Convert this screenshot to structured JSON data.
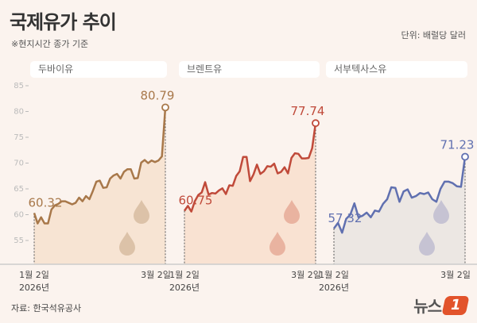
{
  "header": {
    "title": "국제유가 추이",
    "subtitle": "※현지시간 종가 기준",
    "unit": "단위: 배럴당 달러"
  },
  "footer": {
    "source": "자료: 한국석유공사",
    "logo": "뉴스1"
  },
  "chart_data": [
    {
      "type": "area",
      "title": "두바이유",
      "color": "#a8784a",
      "fill": "#f7e4d3",
      "drop_color": "#dcc2a8",
      "x_ticks": [
        "1월 2일\n2026년",
        "3월 2일"
      ],
      "x_start": "1월 2일 2026년",
      "x_end": "3월 2일",
      "ylim": [
        50.4,
        87
      ],
      "y_ticks": [
        55,
        60,
        65,
        70,
        75,
        80,
        85
      ],
      "start_label": "60.32",
      "end_label": "80.79",
      "values": [
        60.32,
        58.3,
        59.5,
        58.3,
        58.3,
        61,
        61.8,
        62.1,
        62.6,
        62.6,
        62.3,
        62,
        62.3,
        63.3,
        62.6,
        63.6,
        63,
        64.6,
        66.4,
        66.6,
        65.2,
        65.3,
        67,
        67.6,
        67.9,
        67,
        68.3,
        68.8,
        68.8,
        67,
        67.1,
        70.1,
        70.6,
        70,
        70.5,
        70.2,
        70.5,
        71.3,
        80.79
      ]
    },
    {
      "type": "area",
      "title": "브렌트유",
      "color": "#c04a3a",
      "fill": "#f9e2d2",
      "drop_color": "#e9b3a0",
      "x_ticks": [
        "1월 2일\n2026년",
        "3월 2일"
      ],
      "ylim": [
        50.4,
        87
      ],
      "start_label": "60.75",
      "end_label": "77.74",
      "values": [
        60.75,
        61.7,
        60.6,
        62.6,
        63.8,
        64.3,
        66.3,
        63.9,
        64.2,
        64.1,
        64.7,
        65.1,
        64.0,
        65.7,
        65.6,
        67.5,
        68.4,
        71.2,
        71.2,
        66.5,
        67.8,
        69.7,
        67.9,
        68.4,
        69.4,
        69.3,
        69.9,
        68.0,
        68.3,
        69.2,
        68,
        71,
        71.9,
        71.8,
        70.9,
        70.9,
        71,
        72.9,
        77.74
      ]
    },
    {
      "type": "area",
      "title": "서부텍사스유",
      "color": "#6070b0",
      "fill": "#ece7e3",
      "drop_color": "#c6c3d3",
      "x_ticks": [
        "1월 2일\n2026년",
        "3월 2일"
      ],
      "ylim": [
        50.4,
        87
      ],
      "start_label": "57.32",
      "end_label": "71.23",
      "values": [
        57.32,
        58.4,
        56.5,
        59.2,
        60,
        62.2,
        59.5,
        59.8,
        60.4,
        59.5,
        60.8,
        60.6,
        62.1,
        63,
        65.3,
        65.2,
        62.5,
        64.5,
        64.9,
        63.3,
        63.6,
        64.2,
        64,
        64.3,
        63.0,
        62.5,
        65,
        66.4,
        66.4,
        66.1,
        65.5,
        65.4,
        71.23
      ]
    }
  ]
}
